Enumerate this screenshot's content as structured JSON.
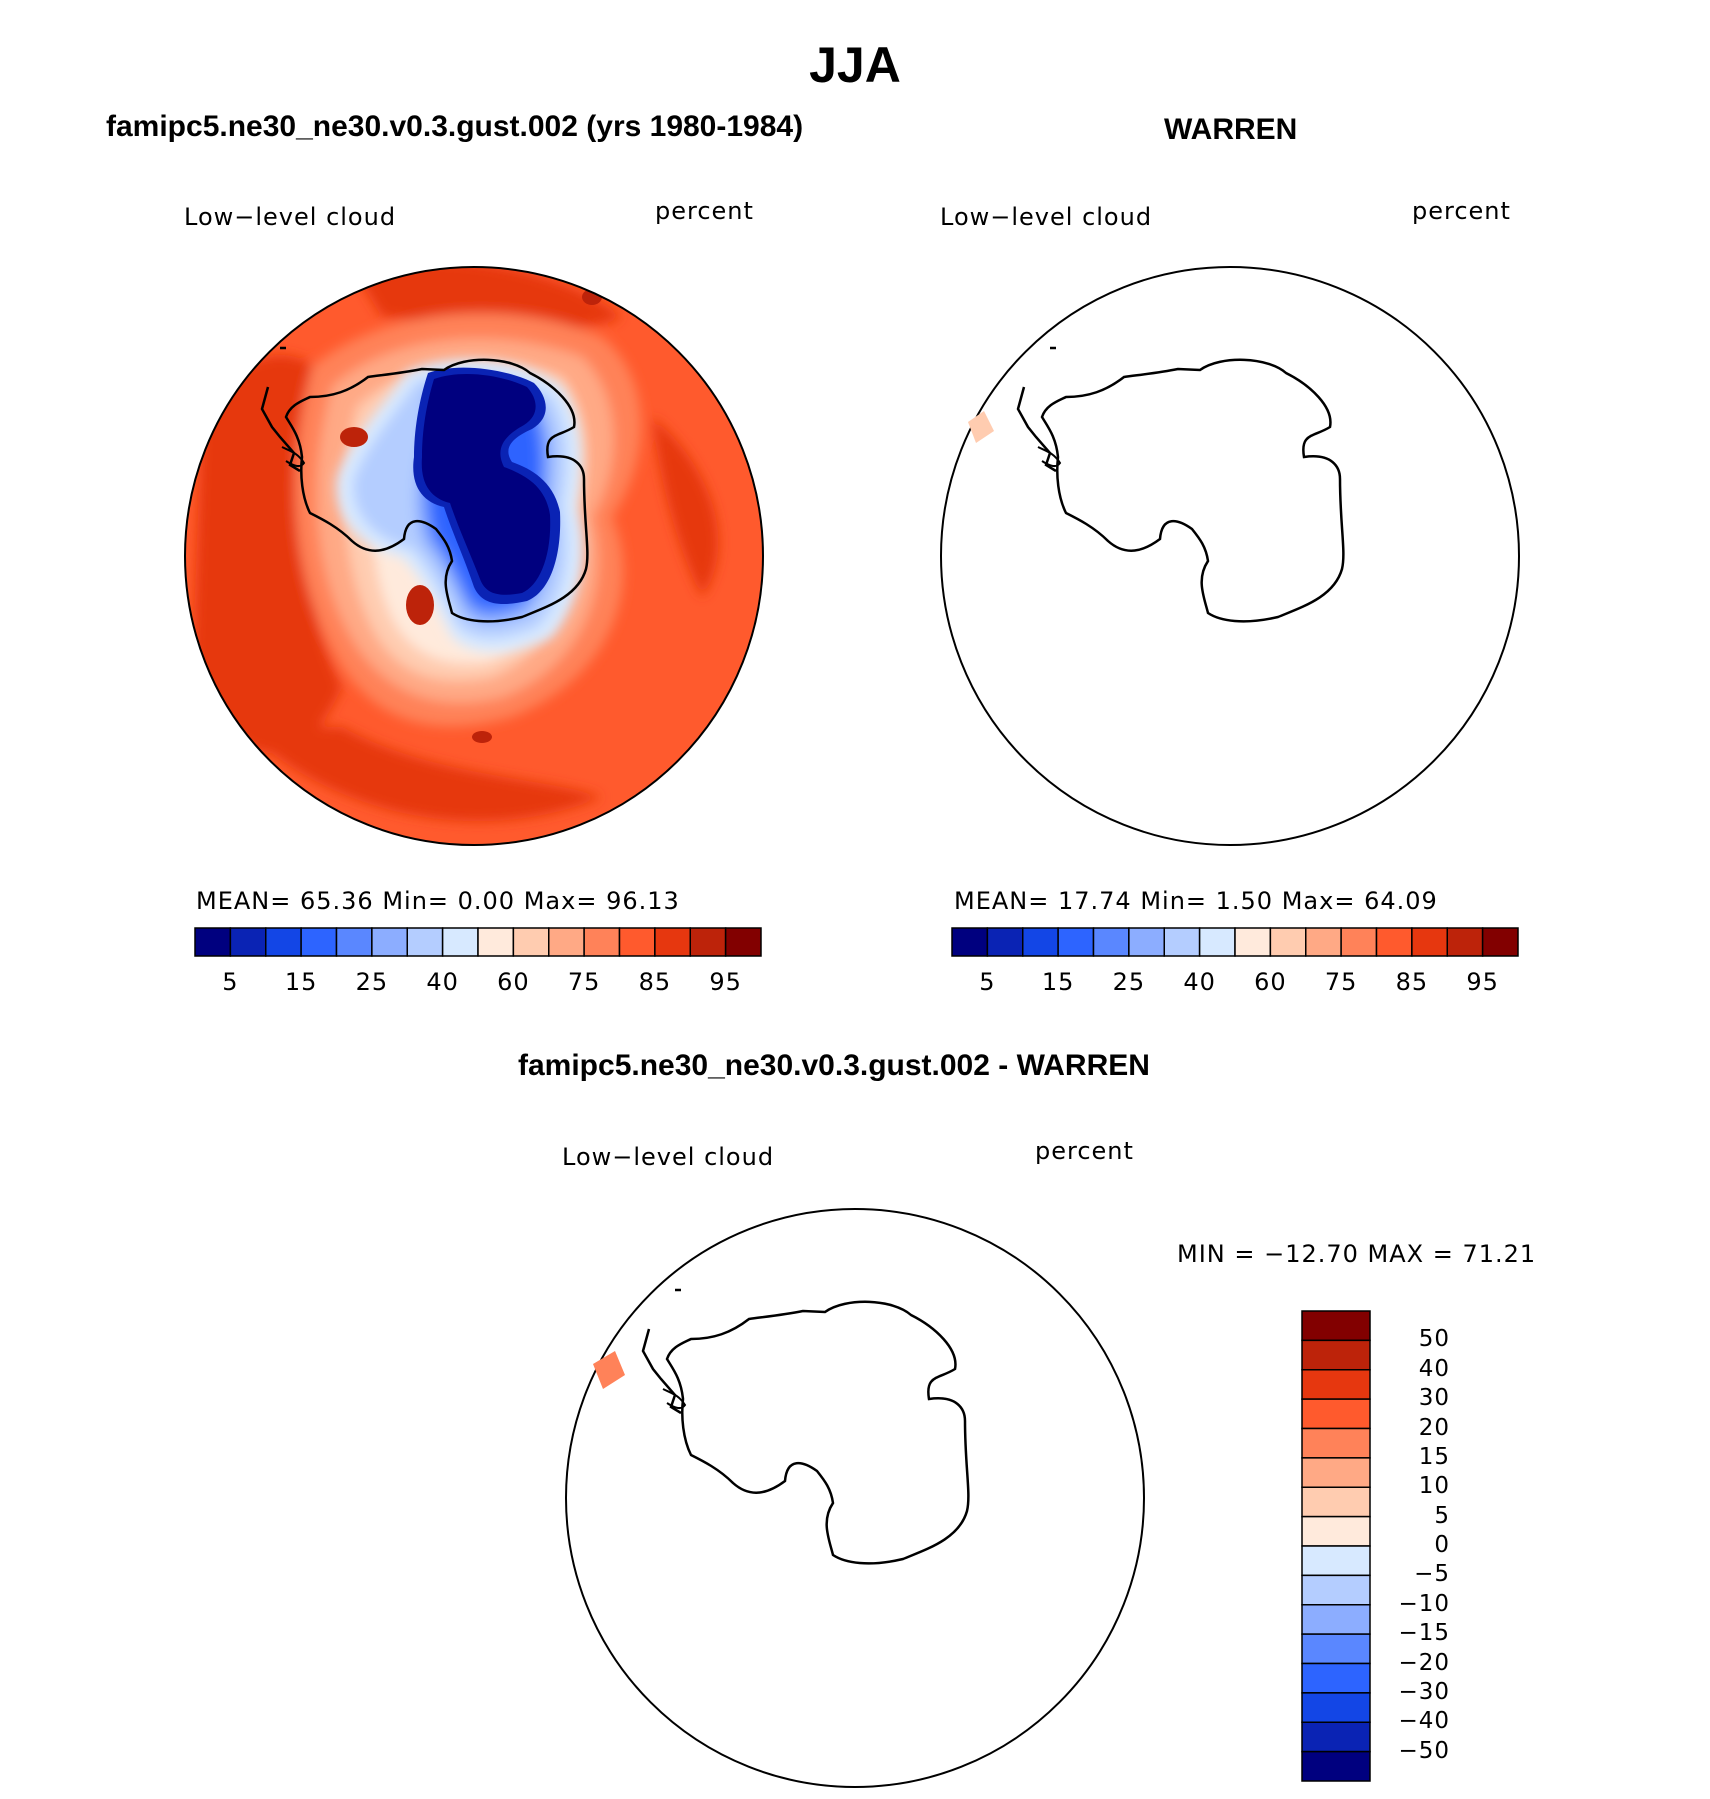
{
  "title": "JJA",
  "panels": [
    {
      "name": "model",
      "title": "famipc5.ne30_ne30.v0.3.gust.002 (yrs 1980-1984)",
      "variable": "Low−level cloud",
      "units": "percent",
      "stats": {
        "mean": "65.36",
        "min": "0.00",
        "max": "96.13"
      },
      "stats_text": "MEAN=   65.36   Min=     0.00    Max=   96.13",
      "colorbar_labels": [
        "5",
        "15",
        "25",
        "40",
        "60",
        "75",
        "85",
        "95"
      ]
    },
    {
      "name": "obs",
      "title": "WARREN",
      "variable": "Low−level cloud",
      "units": "percent",
      "stats": {
        "mean": "17.74",
        "min": "1.50",
        "max": "64.09"
      },
      "stats_text": "MEAN=   17.74   Min=      1.50    Max=   64.09",
      "colorbar_labels": [
        "5",
        "15",
        "25",
        "40",
        "60",
        "75",
        "85",
        "95"
      ]
    }
  ],
  "difference": {
    "title": "famipc5.ne30_ne30.v0.3.gust.002 - WARREN",
    "variable": "Low−level cloud",
    "units": "percent",
    "stats": {
      "min": "−12.70",
      "max": "71.21"
    },
    "stats_text": "MIN  =  −12.70  MAX  =    71.21",
    "colorbar_labels": [
      "50",
      "40",
      "30",
      "20",
      "15",
      "10",
      "5",
      "0",
      "−5",
      "−10",
      "−15",
      "−20",
      "−30",
      "−40",
      "−50"
    ]
  },
  "colors": {
    "abs_scale": [
      "#00007f",
      "#0a23b4",
      "#1346e6",
      "#2d64ff",
      "#5a87ff",
      "#8cadff",
      "#b4cdff",
      "#d7e9ff",
      "#ffeadc",
      "#ffccb0",
      "#ffa985",
      "#ff8259",
      "#ff5a2d",
      "#e6370f",
      "#bd230a",
      "#820000"
    ],
    "diff_scale": [
      "#820000",
      "#bd230a",
      "#e6370f",
      "#ff5a2d",
      "#ff8259",
      "#ffa985",
      "#ffccb0",
      "#ffeadc",
      "#d7e9ff",
      "#b4cdff",
      "#8cadff",
      "#5a87ff",
      "#2d64ff",
      "#1346e6",
      "#0a23b4",
      "#00007f"
    ]
  }
}
